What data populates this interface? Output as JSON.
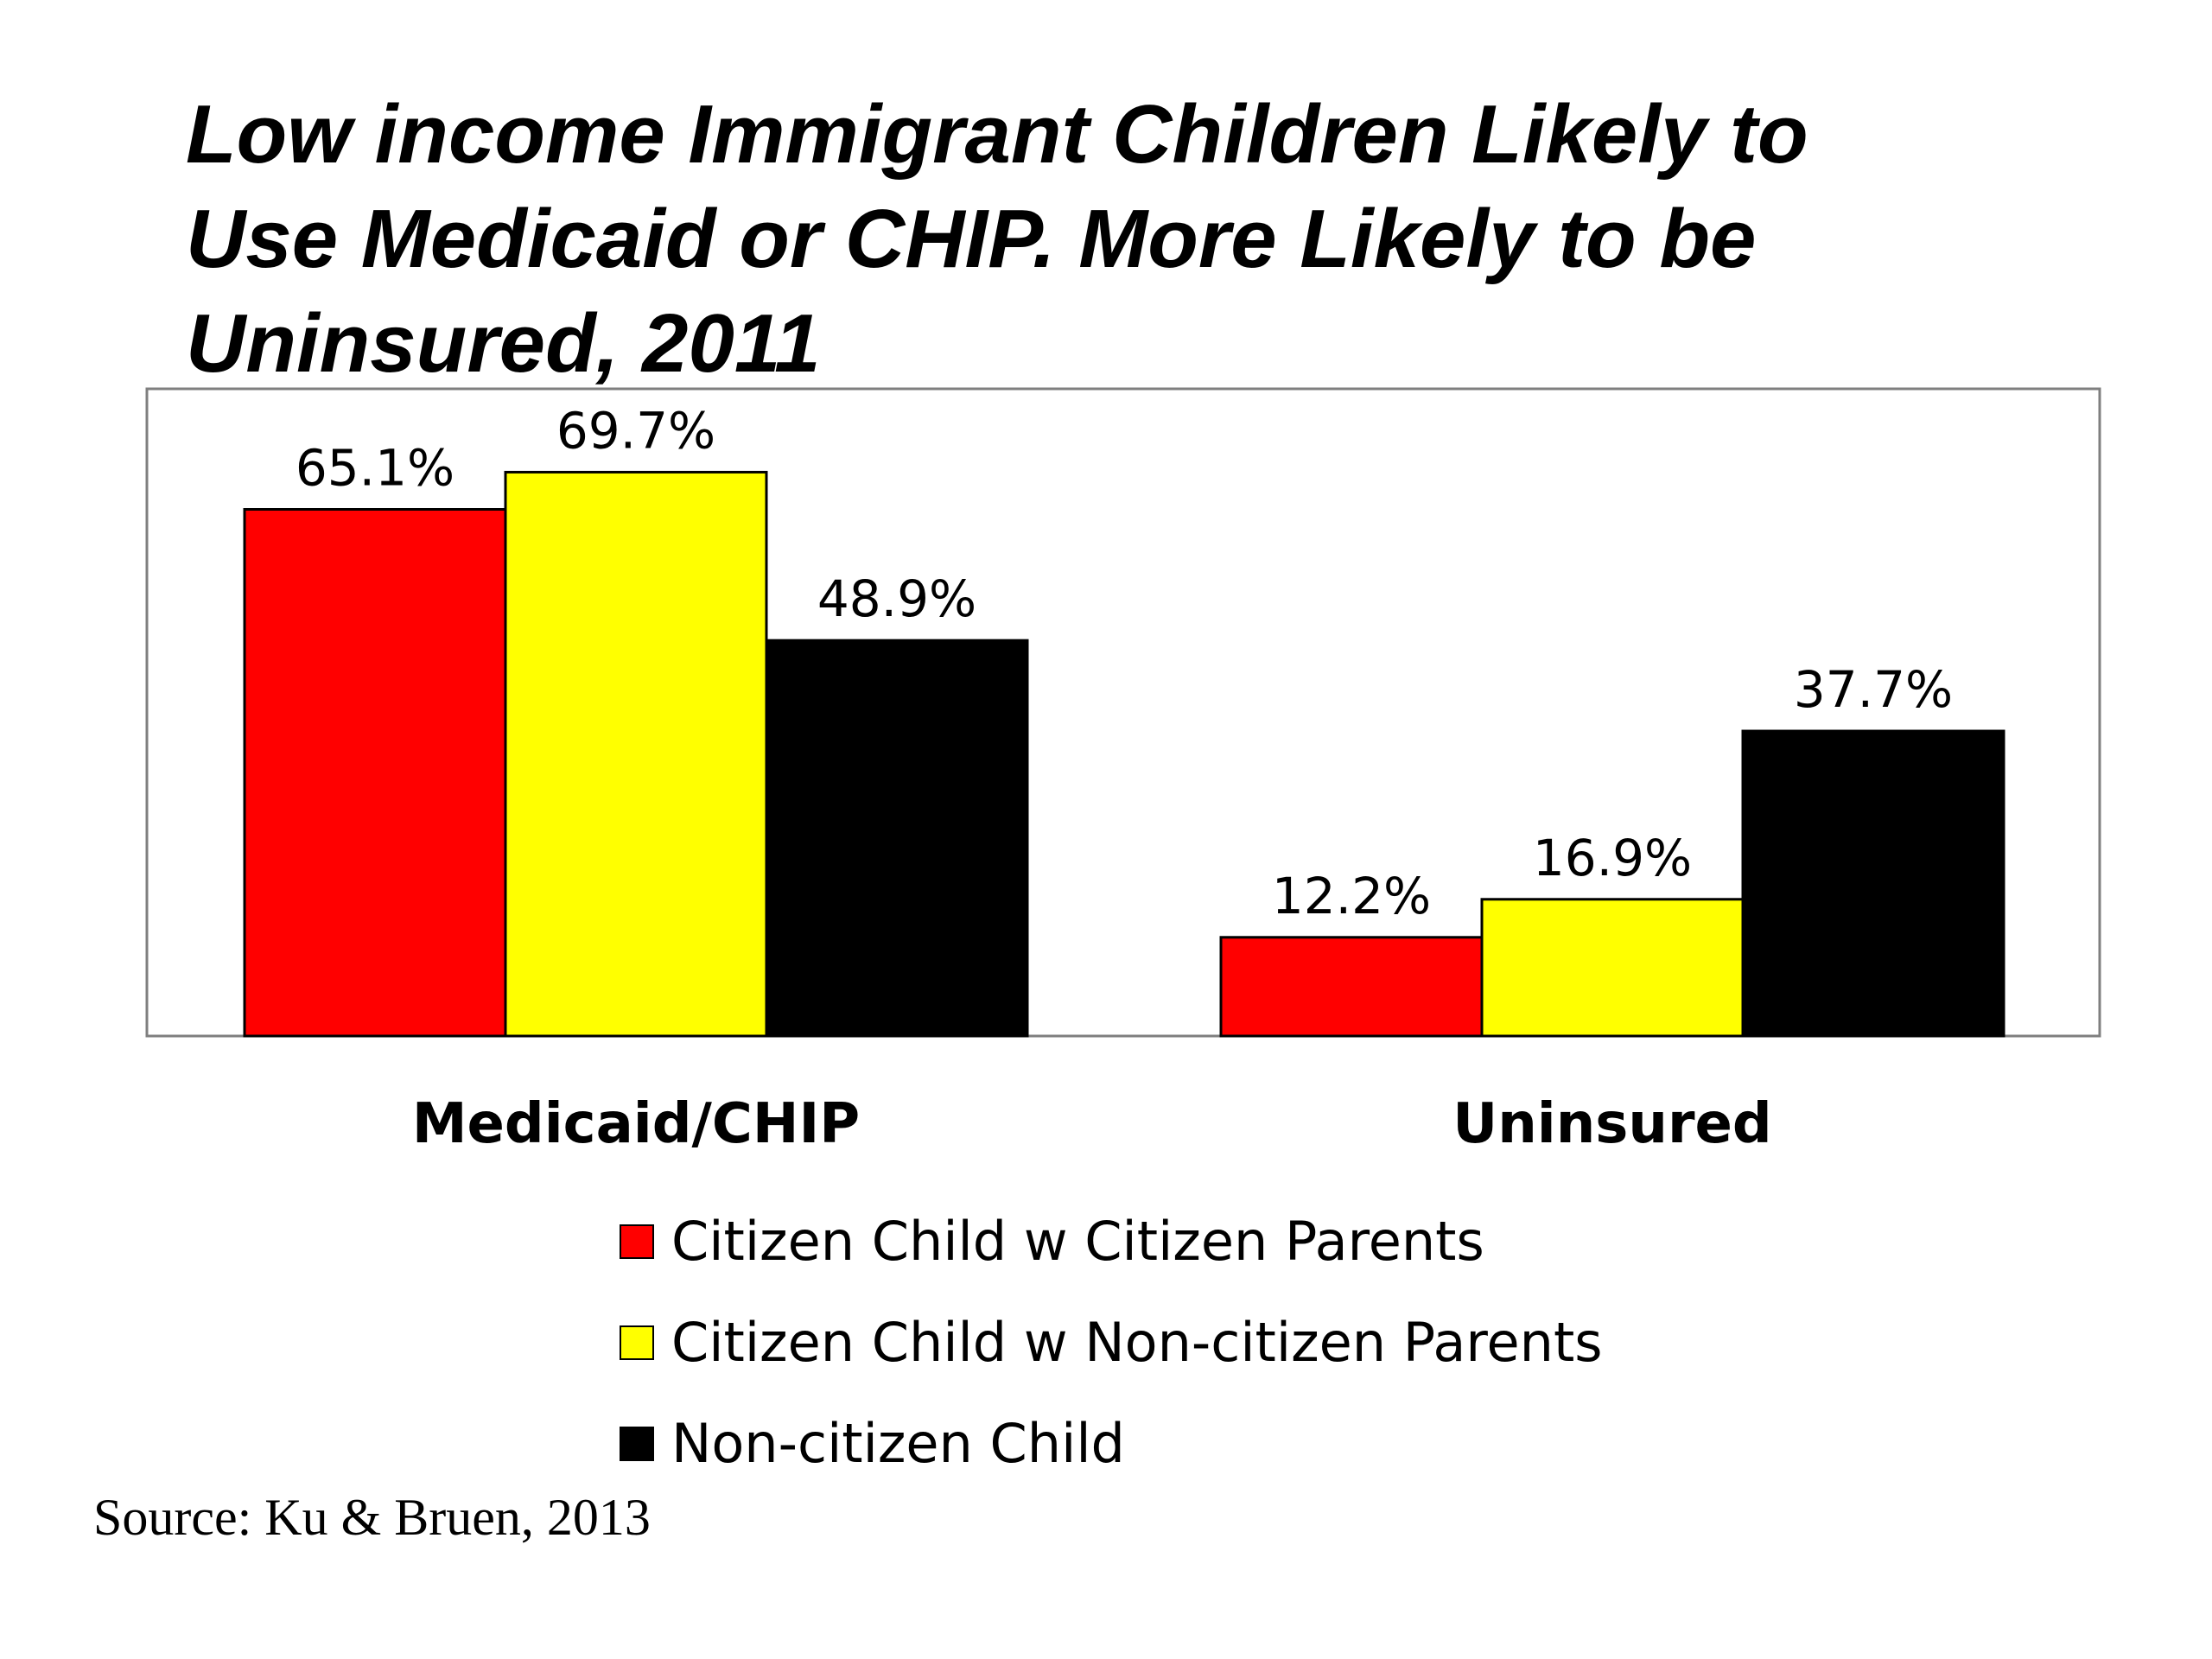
{
  "chart_data": {
    "type": "bar",
    "title_lines": [
      "Low income Immigrant Children Likely to",
      "Use Medicaid or CHIP. More Likely to be",
      "Uninsured, 2011"
    ],
    "categories": [
      "Medicaid/CHIP",
      "Uninsured"
    ],
    "series": [
      {
        "name": "Citizen Child w Citizen Parents",
        "color": "#ff0000",
        "values": [
          65.1,
          12.2
        ],
        "labels": [
          "65.1%",
          "12.2%"
        ]
      },
      {
        "name": "Citizen Child w Non-citizen Parents",
        "color": "#ffff00",
        "values": [
          69.7,
          16.9
        ],
        "labels": [
          "69.7%",
          "16.9%"
        ]
      },
      {
        "name": "Non-citizen Child",
        "color": "#000000",
        "values": [
          48.9,
          37.7
        ],
        "labels": [
          "48.9%",
          "37.7%"
        ]
      }
    ],
    "ylim": [
      0,
      80
    ],
    "grid": false,
    "legend_position": "bottom",
    "source": "Source: Ku & Bruen, 2013"
  }
}
